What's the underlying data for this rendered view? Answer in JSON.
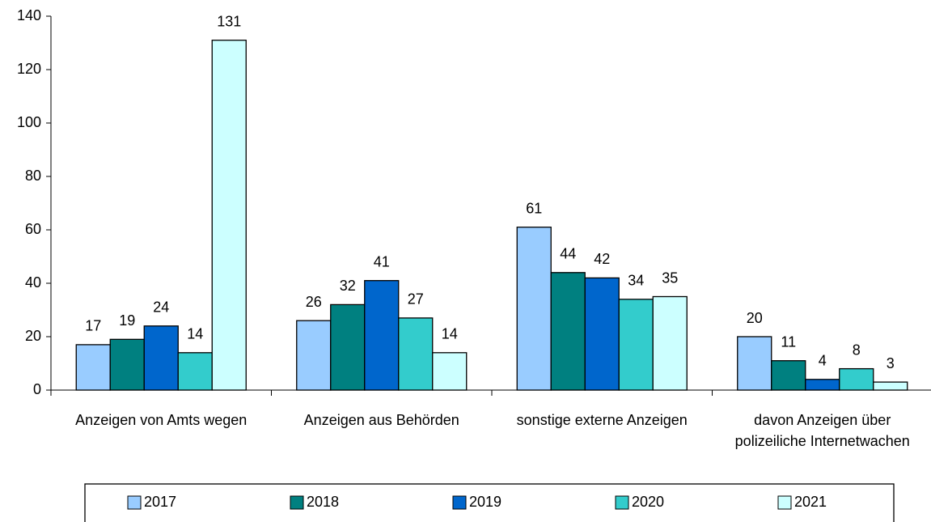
{
  "chart_data": {
    "type": "bar",
    "categories": [
      "Anzeigen von Amts wegen",
      "Anzeigen aus Behörden",
      "sonstige externe Anzeigen",
      "davon Anzeigen über polizeiliche Internetwachen"
    ],
    "series": [
      {
        "name": "2017",
        "color": "#99ccff",
        "values": [
          17,
          26,
          61,
          20
        ]
      },
      {
        "name": "2018",
        "color": "#008080",
        "values": [
          19,
          32,
          44,
          11
        ]
      },
      {
        "name": "2019",
        "color": "#0066cc",
        "values": [
          24,
          41,
          42,
          4
        ]
      },
      {
        "name": "2020",
        "color": "#33cccc",
        "values": [
          14,
          27,
          34,
          8
        ]
      },
      {
        "name": "2021",
        "color": "#ccffff",
        "values": [
          131,
          14,
          35,
          3
        ]
      }
    ],
    "ylim": [
      0,
      140
    ],
    "yticks": [
      0,
      20,
      40,
      60,
      80,
      100,
      120,
      140
    ],
    "grid": false,
    "legend": "bottom"
  }
}
